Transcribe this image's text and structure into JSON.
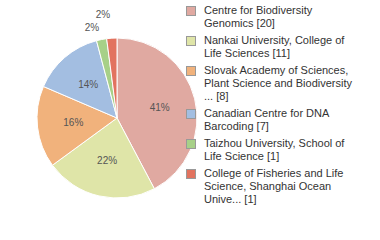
{
  "chart_data": {
    "type": "pie",
    "categories": [
      "Centre for Biodiversity Genomics [20]",
      "Nankai University, College of Life Sciences [11]",
      "Slovak Academy of Sciences, Plant Science and Biodiversity ... [8]",
      "Canadian Centre for DNA Barcoding [7]",
      "Taizhou University, School of Life Science [1]",
      "College of Fisheries and Life Science, Shanghai Ocean Unive... [1]"
    ],
    "values": [
      41,
      22,
      16,
      14,
      2,
      2
    ],
    "value_labels": [
      "41%",
      "22%",
      "16%",
      "14%",
      "2%",
      "2%"
    ],
    "colors": [
      "#e0a9a1",
      "#dfe5a8",
      "#f1b27c",
      "#a3bee1",
      "#a7d088",
      "#e2735f"
    ],
    "data_labels": true,
    "legend": "right"
  }
}
